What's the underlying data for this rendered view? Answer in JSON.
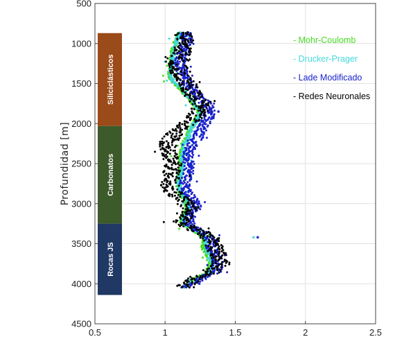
{
  "chart_data": {
    "type": "scatter",
    "title": "",
    "xlabel": "",
    "ylabel": "Profundidad [m]",
    "xlim": [
      0.5,
      2.5
    ],
    "ylim": [
      4500,
      500
    ],
    "y_inverted": true,
    "grid": true,
    "xticks": [
      "0.5",
      "1",
      "1.5",
      "2",
      "2.5"
    ],
    "yticks": [
      "500",
      "1000",
      "1500",
      "2000",
      "2500",
      "3000",
      "3500",
      "4000",
      "4500"
    ],
    "legend_position": "top-right",
    "lithology": [
      {
        "name": "Siliciclásticos",
        "top": 870,
        "bottom": 2030,
        "color": "#9b4a1a"
      },
      {
        "name": "Carbonatos",
        "top": 2030,
        "bottom": 3250,
        "color": "#3d5a2a"
      },
      {
        "name": "Rocas JS",
        "top": 3250,
        "bottom": 4140,
        "color": "#1f3864"
      }
    ],
    "series": [
      {
        "name": "Mohr-Coulomb",
        "label": "- Mohr-Coulomb",
        "color": "#44dd22"
      },
      {
        "name": "Drucker-Prager",
        "label": "- Drucker-Prager",
        "color": "#44d9dd"
      },
      {
        "name": "Lade Modificado",
        "label": "- Lade Modificado",
        "color": "#1a22cc"
      },
      {
        "name": "Redes Neuronales",
        "label": "- Redes Neuronales",
        "color": "#000000"
      }
    ],
    "profiles": {
      "depth": [
        860,
        950,
        1050,
        1150,
        1250,
        1350,
        1450,
        1550,
        1650,
        1750,
        1850,
        1950,
        2050,
        2150,
        2250,
        2350,
        2450,
        2550,
        2650,
        2750,
        2850,
        2950,
        3050,
        3150,
        3250,
        3350,
        3450,
        3550,
        3650,
        3750,
        3850,
        3950,
        4050
      ],
      "Mohr-Coulomb": [
        1.1,
        1.08,
        1.06,
        1.05,
        1.04,
        1.03,
        1.04,
        1.1,
        1.15,
        1.2,
        1.24,
        1.22,
        1.18,
        1.16,
        1.13,
        1.12,
        1.11,
        1.12,
        1.1,
        1.09,
        1.1,
        1.14,
        1.16,
        1.13,
        1.12,
        1.22,
        1.28,
        1.27,
        1.3,
        1.32,
        1.3,
        1.2,
        1.12
      ],
      "Drucker-Prager": [
        1.11,
        1.09,
        1.07,
        1.06,
        1.05,
        1.04,
        1.05,
        1.11,
        1.16,
        1.21,
        1.25,
        1.23,
        1.19,
        1.17,
        1.14,
        1.13,
        1.12,
        1.13,
        1.11,
        1.1,
        1.11,
        1.15,
        1.17,
        1.14,
        1.13,
        1.23,
        1.3,
        1.29,
        1.32,
        1.34,
        1.32,
        1.22,
        1.13
      ],
      "Lade Modificado": [
        1.15,
        1.16,
        1.14,
        1.12,
        1.1,
        1.12,
        1.14,
        1.18,
        1.24,
        1.3,
        1.32,
        1.3,
        1.26,
        1.24,
        1.2,
        1.17,
        1.16,
        1.18,
        1.16,
        1.14,
        1.15,
        1.2,
        1.22,
        1.18,
        1.16,
        1.26,
        1.34,
        1.33,
        1.36,
        1.38,
        1.36,
        1.24,
        1.15
      ],
      "Redes Neuronales": [
        1.12,
        1.14,
        1.13,
        1.11,
        1.09,
        1.1,
        1.13,
        1.17,
        1.2,
        1.25,
        1.24,
        1.2,
        1.12,
        1.06,
        1.02,
        1.03,
        1.05,
        1.06,
        1.04,
        1.03,
        1.05,
        1.12,
        1.18,
        1.13,
        1.12,
        1.25,
        1.34,
        1.35,
        1.38,
        1.4,
        1.32,
        1.18,
        1.14
      ]
    },
    "outliers": [
      {
        "series": "Drucker-Prager",
        "x": 1.63,
        "y": 3420
      },
      {
        "series": "Lade Modificado",
        "x": 1.66,
        "y": 3420
      },
      {
        "series": "Lade Modificado",
        "x": 1.38,
        "y": 1850
      }
    ]
  }
}
